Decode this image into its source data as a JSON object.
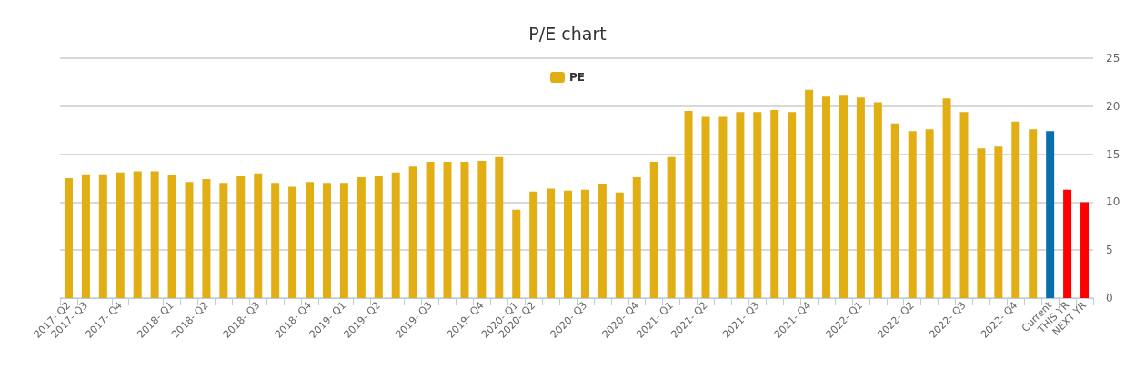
{
  "chart_data": {
    "type": "bar",
    "title": "P/E chart",
    "categories": [
      "2017- Q2",
      "2017- Q3",
      null,
      "2017- Q4",
      null,
      null,
      "2018- Q1",
      null,
      "2018- Q2",
      null,
      null,
      "2018- Q3",
      null,
      null,
      "2018- Q4",
      null,
      "2019- Q1",
      null,
      "2019- Q2",
      null,
      null,
      "2019- Q3",
      null,
      null,
      "2019- Q4",
      null,
      "2020- Q1",
      "2020- Q2",
      null,
      null,
      "2020- Q3",
      null,
      null,
      "2020- Q4",
      null,
      "2021- Q1",
      null,
      "2021- Q2",
      null,
      null,
      "2021- Q3",
      null,
      null,
      "2021- Q4",
      null,
      null,
      "2022- Q1",
      null,
      null,
      "2022- Q2",
      null,
      null,
      "2022- Q3",
      null,
      null,
      "2022- Q4",
      null,
      "Current",
      "THIS YR",
      "NEXT YR"
    ],
    "series": [
      {
        "name": "PE",
        "color": "#e1ae14",
        "values": [
          12.5,
          12.9,
          12.9,
          13.1,
          13.2,
          13.2,
          12.8,
          12.1,
          12.4,
          12.0,
          12.7,
          13.0,
          12.0,
          11.6,
          12.1,
          12.0,
          12.0,
          12.6,
          12.7,
          13.1,
          13.7,
          14.2,
          14.2,
          14.2,
          14.3,
          14.7,
          9.2,
          11.1,
          11.4,
          11.2,
          11.3,
          11.9,
          11.0,
          12.6,
          14.2,
          14.7,
          19.5,
          18.9,
          18.9,
          19.4,
          19.4,
          19.6,
          19.4,
          21.7,
          21.0,
          21.1,
          20.9,
          20.4,
          18.2,
          17.4,
          17.6,
          20.8,
          19.4,
          15.6,
          15.8,
          18.4,
          17.6,
          17.4,
          11.3,
          10.0
        ],
        "colors": [
          "#e1ae14",
          "#e1ae14",
          "#e1ae14",
          "#e1ae14",
          "#e1ae14",
          "#e1ae14",
          "#e1ae14",
          "#e1ae14",
          "#e1ae14",
          "#e1ae14",
          "#e1ae14",
          "#e1ae14",
          "#e1ae14",
          "#e1ae14",
          "#e1ae14",
          "#e1ae14",
          "#e1ae14",
          "#e1ae14",
          "#e1ae14",
          "#e1ae14",
          "#e1ae14",
          "#e1ae14",
          "#e1ae14",
          "#e1ae14",
          "#e1ae14",
          "#e1ae14",
          "#e1ae14",
          "#e1ae14",
          "#e1ae14",
          "#e1ae14",
          "#e1ae14",
          "#e1ae14",
          "#e1ae14",
          "#e1ae14",
          "#e1ae14",
          "#e1ae14",
          "#e1ae14",
          "#e1ae14",
          "#e1ae14",
          "#e1ae14",
          "#e1ae14",
          "#e1ae14",
          "#e1ae14",
          "#e1ae14",
          "#e1ae14",
          "#e1ae14",
          "#e1ae14",
          "#e1ae14",
          "#e1ae14",
          "#e1ae14",
          "#e1ae14",
          "#e1ae14",
          "#e1ae14",
          "#e1ae14",
          "#e1ae14",
          "#e1ae14",
          "#e1ae14",
          "#0a6fad",
          "#ff0000",
          "#ff0000"
        ]
      }
    ],
    "ylim": [
      0,
      25
    ],
    "yticks": [
      0,
      5,
      10,
      15,
      20,
      25
    ],
    "grid": "y",
    "legend": "top"
  }
}
